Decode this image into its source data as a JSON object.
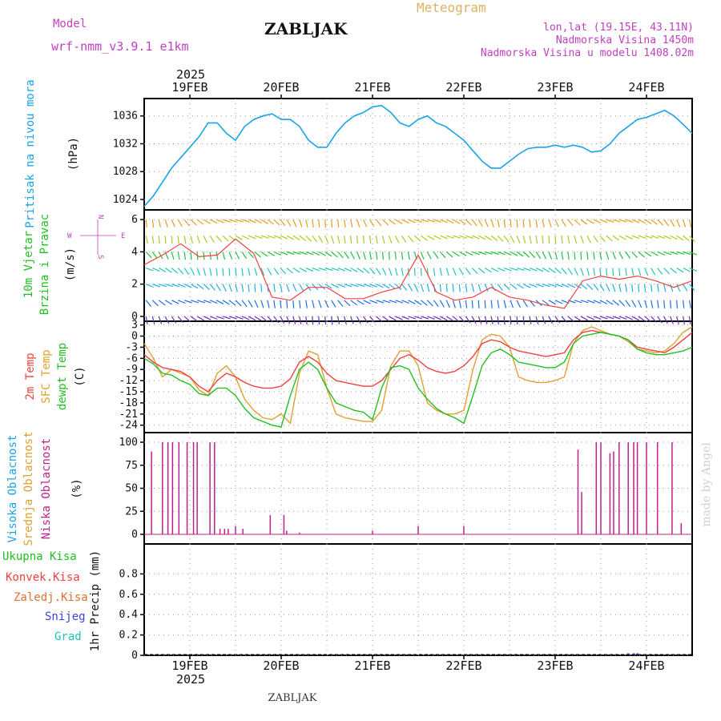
{
  "header": {
    "model_label": "Model",
    "model_name": "wrf-nmm_v3.9.1 e1km",
    "station": "ZABLJAK",
    "title": "Meteogram",
    "lonlat": "lon,lat (19.15E, 43.11N)",
    "elevation": "Nadmorska Visina 1450m",
    "model_elevation": "Nadmorska Visina u modelu 1408.02m",
    "footer_station": "ZABLJAK",
    "credit": "made by Angel",
    "year": "2025"
  },
  "colors": {
    "pressure": "#1aa3e8",
    "temp2m": "#f04040",
    "sfc_temp": "#e0a030",
    "dewpoint": "#20c020",
    "low_cloud": "#c0208a",
    "grid": "#888888",
    "label_cyan": "#1aa3e8",
    "label_green": "#20c020",
    "label_red": "#f04040",
    "label_orange": "#e0a030",
    "label_purple": "#c040c0",
    "label_blue": "#4040e0"
  },
  "chart_data": [
    {
      "type": "line",
      "title": "",
      "ylabel_left": "Pritisak na nivou mora",
      "ylabel_unit": "(hPa)",
      "x_ticks": [
        "19FEB",
        "20FEB",
        "21FEB",
        "22FEB",
        "23FEB",
        "24FEB"
      ],
      "x_range_days": [
        18.5,
        24.5
      ],
      "yticks": [
        "1024",
        "1028",
        "1032",
        "1036"
      ],
      "ylim": [
        1022.5,
        1038.5
      ],
      "series": [
        {
          "name": "",
          "x": [
            18.5,
            18.6,
            18.7,
            18.8,
            18.9,
            19.0,
            19.1,
            19.2,
            19.3,
            19.4,
            19.5,
            19.6,
            19.7,
            19.8,
            19.9,
            20.0,
            20.1,
            20.2,
            20.3,
            20.4,
            20.5,
            20.6,
            20.7,
            20.8,
            20.9,
            21.0,
            21.1,
            21.2,
            21.3,
            21.4,
            21.5,
            21.6,
            21.7,
            21.8,
            21.9,
            22.0,
            22.1,
            22.2,
            22.3,
            22.4,
            22.5,
            22.6,
            22.7,
            22.8,
            22.9,
            23.0,
            23.1,
            23.2,
            23.3,
            23.4,
            23.5,
            23.6,
            23.7,
            23.8,
            23.9,
            24.0,
            24.1,
            24.2,
            24.3,
            24.4,
            24.5
          ],
          "values": [
            1023.0,
            1024.5,
            1026.5,
            1028.5,
            1030.0,
            1031.5,
            1033.0,
            1035.0,
            1035.0,
            1033.5,
            1032.5,
            1034.5,
            1035.5,
            1036.0,
            1036.3,
            1035.5,
            1035.5,
            1034.5,
            1032.5,
            1031.5,
            1031.5,
            1033.5,
            1035.0,
            1036.0,
            1036.5,
            1037.3,
            1037.5,
            1036.5,
            1035.0,
            1034.5,
            1035.5,
            1036.0,
            1035.0,
            1034.5,
            1033.5,
            1032.5,
            1031.0,
            1029.5,
            1028.5,
            1028.5,
            1029.5,
            1030.5,
            1031.3,
            1031.5,
            1031.5,
            1031.8,
            1031.5,
            1031.8,
            1031.5,
            1030.8,
            1031.0,
            1032.0,
            1033.5,
            1034.5,
            1035.5,
            1035.8,
            1036.3,
            1036.8,
            1036.0,
            1034.8,
            1033.5
          ]
        }
      ]
    },
    {
      "type": "scatter",
      "title": "",
      "ylabel_left_1": "10m Vjetar",
      "ylabel_left_2": "Brzina i Pravac",
      "ylabel_unit": "(m/s)",
      "compass": [
        "N",
        "W",
        "E",
        "S"
      ],
      "yticks": [
        "0",
        "2",
        "4",
        "6"
      ],
      "ylim": [
        -0.3,
        6.6
      ],
      "levels": [
        0,
        1,
        2,
        3,
        4,
        5,
        6
      ],
      "level_colors": [
        "#6a2ec0",
        "#1e6fe0",
        "#1fb0e0",
        "#20c8b0",
        "#20c040",
        "#a0d020",
        "#e0a020"
      ],
      "series": [
        {
          "name": "",
          "x": [
            18.5,
            18.7,
            18.9,
            19.1,
            19.3,
            19.5,
            19.7,
            19.9,
            20.1,
            20.3,
            20.5,
            20.7,
            20.9,
            21.1,
            21.3,
            21.5,
            21.7,
            21.9,
            22.1,
            22.3,
            22.5,
            22.7,
            22.9,
            23.1,
            23.3,
            23.5,
            23.7,
            23.9,
            24.1,
            24.3,
            24.5
          ],
          "values": [
            3.2,
            3.8,
            4.5,
            3.7,
            3.8,
            4.8,
            3.9,
            1.2,
            1.0,
            1.8,
            1.8,
            1.1,
            1.1,
            1.5,
            1.8,
            3.8,
            1.5,
            1.0,
            1.2,
            1.8,
            1.2,
            1.0,
            0.7,
            0.5,
            2.2,
            2.5,
            2.3,
            2.5,
            2.2,
            1.8,
            2.2
          ]
        }
      ]
    },
    {
      "type": "line",
      "title": "",
      "ylabel_1": "2m Temp",
      "ylabel_2": "SFC Temp",
      "ylabel_3": "dewpt Temp",
      "ylabel_unit": "(C)",
      "yticks": [
        "3",
        "0",
        "-3",
        "-6",
        "-9",
        "-12",
        "-15",
        "-18",
        "-21",
        "-24"
      ],
      "ylim": [
        -26,
        4
      ],
      "series": [
        {
          "name": "2m Temp",
          "x": [
            18.5,
            18.6,
            18.7,
            18.8,
            18.9,
            19.0,
            19.1,
            19.2,
            19.3,
            19.4,
            19.5,
            19.6,
            19.7,
            19.8,
            19.9,
            20.0,
            20.1,
            20.2,
            20.3,
            20.4,
            20.5,
            20.6,
            20.7,
            20.8,
            20.9,
            21.0,
            21.1,
            21.2,
            21.3,
            21.4,
            21.5,
            21.6,
            21.7,
            21.8,
            21.9,
            22.0,
            22.1,
            22.2,
            22.3,
            22.4,
            22.5,
            22.6,
            22.7,
            22.8,
            22.9,
            23.0,
            23.1,
            23.2,
            23.3,
            23.4,
            23.5,
            23.6,
            23.7,
            23.8,
            23.9,
            24.0,
            24.1,
            24.2,
            24.3,
            24.4,
            24.5
          ],
          "values": [
            -5.0,
            -7.0,
            -8.5,
            -9.0,
            -9.5,
            -11.0,
            -13.5,
            -15.0,
            -12.0,
            -10.0,
            -11.0,
            -12.5,
            -13.5,
            -14.0,
            -14.0,
            -13.5,
            -11.5,
            -7.0,
            -5.5,
            -7.0,
            -10.0,
            -12.0,
            -12.5,
            -13.0,
            -13.5,
            -13.5,
            -12.0,
            -9.0,
            -6.0,
            -5.0,
            -6.5,
            -8.5,
            -9.5,
            -10.0,
            -9.5,
            -8.0,
            -5.5,
            -2.0,
            -1.0,
            -1.5,
            -3.0,
            -4.0,
            -4.5,
            -5.0,
            -5.5,
            -5.0,
            -4.5,
            -1.0,
            1.0,
            1.5,
            1.0,
            0.5,
            0.0,
            -1.0,
            -3.0,
            -3.5,
            -4.0,
            -4.5,
            -3.0,
            -1.0,
            1.0
          ]
        },
        {
          "name": "SFC Temp",
          "x": [
            18.5,
            18.6,
            18.7,
            18.8,
            18.9,
            19.0,
            19.1,
            19.2,
            19.3,
            19.4,
            19.5,
            19.6,
            19.7,
            19.8,
            19.9,
            20.0,
            20.1,
            20.2,
            20.3,
            20.4,
            20.5,
            20.6,
            20.7,
            20.8,
            20.9,
            21.0,
            21.1,
            21.2,
            21.3,
            21.4,
            21.5,
            21.6,
            21.7,
            21.8,
            21.9,
            22.0,
            22.1,
            22.2,
            22.3,
            22.4,
            22.5,
            22.6,
            22.7,
            22.8,
            22.9,
            23.0,
            23.1,
            23.2,
            23.3,
            23.4,
            23.5,
            23.6,
            23.7,
            23.8,
            23.9,
            24.0,
            24.1,
            24.2,
            24.3,
            24.4,
            24.5
          ],
          "values": [
            -2.0,
            -6.0,
            -11.0,
            -9.0,
            -10.0,
            -11.0,
            -14.5,
            -16.0,
            -10.0,
            -8.0,
            -11.0,
            -17.0,
            -20.0,
            -22.0,
            -22.5,
            -21.0,
            -23.5,
            -10.0,
            -4.0,
            -5.0,
            -14.0,
            -21.0,
            -22.0,
            -22.5,
            -23.0,
            -23.0,
            -20.0,
            -8.0,
            -4.0,
            -4.0,
            -8.0,
            -18.0,
            -20.0,
            -21.0,
            -21.0,
            -20.0,
            -9.0,
            -1.0,
            0.5,
            0.0,
            -3.0,
            -11.0,
            -12.0,
            -12.5,
            -12.5,
            -12.0,
            -11.0,
            -2.0,
            1.5,
            2.5,
            1.5,
            0.5,
            0.0,
            -1.5,
            -3.5,
            -4.0,
            -4.5,
            -4.0,
            -2.0,
            1.0,
            2.5
          ]
        },
        {
          "name": "dewpt Temp",
          "x": [
            18.5,
            18.6,
            18.7,
            18.8,
            18.9,
            19.0,
            19.1,
            19.2,
            19.3,
            19.4,
            19.5,
            19.6,
            19.7,
            19.8,
            19.9,
            20.0,
            20.1,
            20.2,
            20.3,
            20.4,
            20.5,
            20.6,
            20.7,
            20.8,
            20.9,
            21.0,
            21.1,
            21.2,
            21.3,
            21.4,
            21.5,
            21.6,
            21.7,
            21.8,
            21.9,
            22.0,
            22.1,
            22.2,
            22.3,
            22.4,
            22.5,
            22.6,
            22.7,
            22.8,
            22.9,
            23.0,
            23.1,
            23.2,
            23.3,
            23.4,
            23.5,
            23.6,
            23.7,
            23.8,
            23.9,
            24.0,
            24.1,
            24.2,
            24.3,
            24.4,
            24.5
          ],
          "values": [
            -6.0,
            -7.5,
            -10.0,
            -10.5,
            -12.0,
            -13.0,
            -15.5,
            -16.0,
            -14.0,
            -14.0,
            -16.0,
            -19.5,
            -22.0,
            -23.0,
            -24.0,
            -24.5,
            -16.0,
            -9.0,
            -7.0,
            -9.0,
            -14.0,
            -18.0,
            -19.0,
            -20.0,
            -20.5,
            -22.5,
            -14.0,
            -8.5,
            -8.0,
            -9.0,
            -14.0,
            -17.0,
            -19.5,
            -21.0,
            -22.0,
            -23.5,
            -16.0,
            -8.0,
            -4.5,
            -3.5,
            -5.0,
            -7.0,
            -7.5,
            -8.0,
            -8.5,
            -8.5,
            -7.0,
            -2.0,
            0.0,
            0.5,
            1.0,
            0.5,
            0.0,
            -1.0,
            -3.5,
            -4.5,
            -5.0,
            -5.0,
            -4.5,
            -4.0,
            -3.0
          ]
        }
      ]
    },
    {
      "type": "bar",
      "title": "",
      "ylabel_1": "Visoka Oblacnost",
      "ylabel_2": "Srednja Oblacnost",
      "ylabel_3": "Niska Oblacnost",
      "ylabel_unit": "(%)",
      "yticks": [
        "0",
        "25",
        "50",
        "75",
        "100"
      ],
      "ylim": [
        0,
        100
      ],
      "series": [
        {
          "name": "Niska Oblacnost",
          "x": [
            18.58,
            18.7,
            18.76,
            18.81,
            18.88,
            18.97,
            19.04,
            19.08,
            19.22,
            19.27,
            19.33,
            19.38,
            19.42,
            19.5,
            19.58,
            19.88,
            20.03,
            20.06,
            20.2,
            21.0,
            21.5,
            22.0,
            23.25,
            23.29,
            23.45,
            23.5,
            23.6,
            23.64,
            23.7,
            23.8,
            23.86,
            23.9,
            24.0,
            24.12,
            24.28,
            24.38
          ],
          "values": [
            90,
            100,
            100,
            100,
            100,
            100,
            100,
            100,
            100,
            100,
            6,
            6,
            6,
            9,
            6,
            21,
            21,
            4,
            2,
            4,
            9,
            9,
            92,
            46,
            100,
            100,
            88,
            90,
            100,
            100,
            100,
            100,
            100,
            100,
            100,
            12
          ]
        }
      ]
    },
    {
      "type": "bar",
      "title": "",
      "ylabel_unit": "1hr Precip (mm)",
      "legend": [
        "Ukupna Kisa",
        "Konvek.Kisa",
        "Zaledj.Kisa",
        "Snijeg",
        "Grad"
      ],
      "yticks": [
        "0",
        "0.2",
        "0.4",
        "0.6",
        "0.8"
      ],
      "ylim": [
        0,
        1.0
      ],
      "series": [
        {
          "name": "Snijeg",
          "x": [
            23.8,
            23.86,
            23.9
          ],
          "values": [
            0.005,
            0.01,
            0.006
          ]
        }
      ]
    }
  ]
}
